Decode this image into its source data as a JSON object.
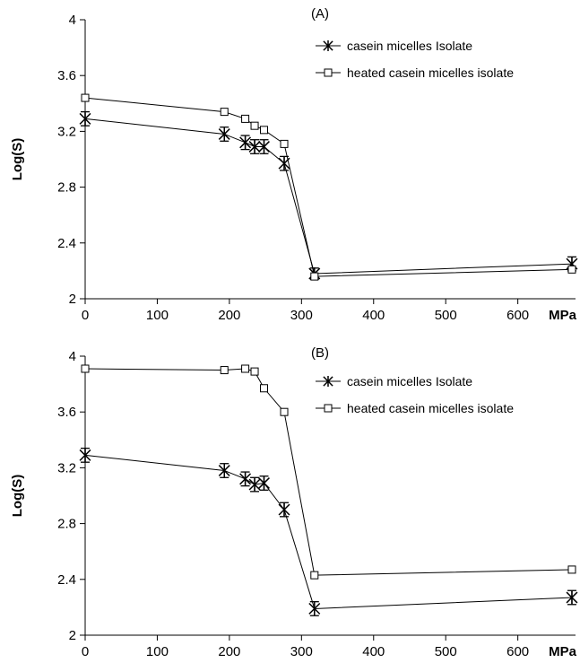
{
  "chart_data": [
    {
      "type": "line",
      "panel_label": "(A)",
      "ylabel": "Log(S)",
      "xlabel": "MPa",
      "xlim": [
        0,
        680
      ],
      "ylim": [
        2,
        4
      ],
      "xticks": [
        0,
        100,
        200,
        300,
        400,
        500,
        600
      ],
      "yticks": [
        2,
        2.4,
        2.8,
        3.2,
        3.6,
        4
      ],
      "ytick_labels": [
        "2",
        "2.4",
        "2.8",
        "3.2",
        "3.6",
        "4"
      ],
      "grid": false,
      "legend_position": "top-right",
      "series": [
        {
          "name": "casein micelles Isolate",
          "marker": "asterisk",
          "error_bars": true,
          "x": [
            0,
            193,
            222,
            235,
            248,
            276,
            318,
            675
          ],
          "y": [
            3.29,
            3.18,
            3.12,
            3.09,
            3.09,
            2.97,
            2.18,
            2.25
          ],
          "err": [
            0.05,
            0.05,
            0.05,
            0.05,
            0.05,
            0.05,
            0.04,
            0.05
          ]
        },
        {
          "name": "heated casein micelles isolate",
          "marker": "open-square",
          "error_bars": false,
          "x": [
            0,
            193,
            222,
            235,
            248,
            276,
            318,
            675
          ],
          "y": [
            3.44,
            3.34,
            3.29,
            3.24,
            3.21,
            3.11,
            2.16,
            2.21
          ],
          "err": []
        }
      ]
    },
    {
      "type": "line",
      "panel_label": "(B)",
      "ylabel": "Log(S)",
      "xlabel": "MPa",
      "xlim": [
        0,
        680
      ],
      "ylim": [
        2,
        4
      ],
      "xticks": [
        0,
        100,
        200,
        300,
        400,
        500,
        600
      ],
      "yticks": [
        2,
        2.4,
        2.8,
        3.2,
        3.6,
        4
      ],
      "ytick_labels": [
        "2",
        "2.4",
        "2.8",
        "3.2",
        "3.6",
        "4"
      ],
      "grid": false,
      "legend_position": "top-right",
      "series": [
        {
          "name": "casein micelles Isolate",
          "marker": "asterisk",
          "error_bars": true,
          "x": [
            0,
            193,
            222,
            235,
            248,
            276,
            318,
            675
          ],
          "y": [
            3.29,
            3.18,
            3.12,
            3.08,
            3.09,
            2.9,
            2.19,
            2.27
          ],
          "err": [
            0.05,
            0.05,
            0.05,
            0.05,
            0.05,
            0.05,
            0.05,
            0.05
          ]
        },
        {
          "name": "heated casein micelles isolate",
          "marker": "open-square",
          "error_bars": false,
          "x": [
            0,
            193,
            222,
            235,
            248,
            276,
            318,
            675
          ],
          "y": [
            3.91,
            3.9,
            3.91,
            3.89,
            3.77,
            3.6,
            2.43,
            2.47
          ],
          "err": []
        }
      ]
    }
  ],
  "colors": {
    "line": "#000000",
    "background": "#ffffff"
  }
}
